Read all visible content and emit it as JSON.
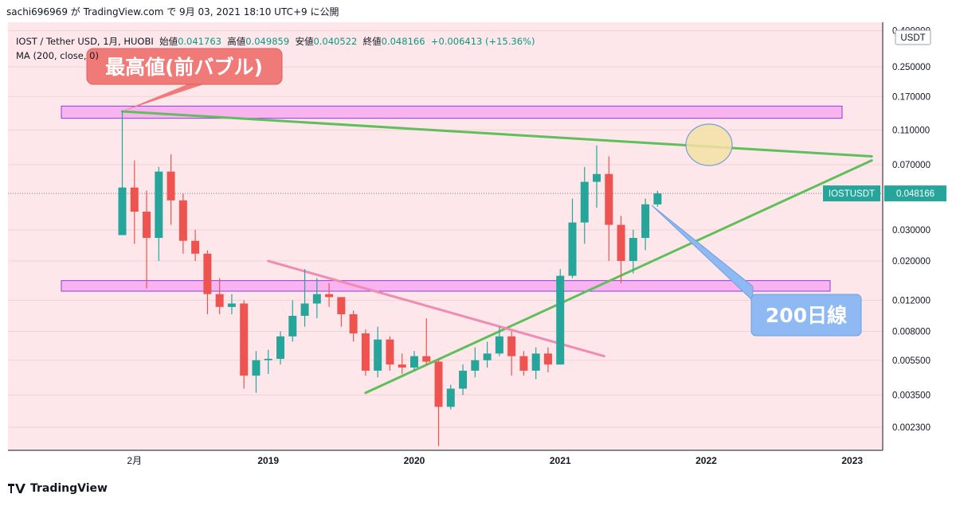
{
  "header": {
    "text": "sachi696969 が TradingView.com で 9月 03, 2021 18:10 UTC+9 に公開"
  },
  "legend": {
    "symbol": "IOST / Tether USD, 1月, HUOBI",
    "open_label": "始値",
    "open": "0.041763",
    "high_label": "高値",
    "high": "0.049859",
    "low_label": "安値",
    "low": "0.040522",
    "close_label": "終値",
    "close": "0.048166",
    "change": "+0.006413 (+15.36%)",
    "ma": "MA (200, close, 0)"
  },
  "price_axis": {
    "unit": "USDT",
    "ticks": [
      "0.400000",
      "0.250000",
      "0.170000",
      "0.110000",
      "0.070000",
      "0.048166",
      "0.030000",
      "0.020000",
      "0.012000",
      "0.008000",
      "0.005500",
      "0.003500",
      "0.002300"
    ],
    "last_symbol": "IOSTUSDT",
    "last_price": "0.048166"
  },
  "time_axis": {
    "ticks": [
      "2月",
      "2019",
      "2020",
      "2021",
      "2022",
      "2023"
    ]
  },
  "annotations": {
    "callout_top": "最高値(前バブル)",
    "callout_ma": "200日線"
  },
  "footer": {
    "brand": "TradingView"
  },
  "colors": {
    "up": "#26a69a",
    "down": "#ef5350",
    "background": "#fde7ea",
    "zone": "#f8b3f0",
    "trend_green": "#5fbf5c",
    "trend_pink": "#f28ab2",
    "callout_red": "#f07a78",
    "callout_blue": "#8fb9f2"
  },
  "chart_data": {
    "type": "candlestick",
    "title": "IOST / Tether USD, 1月, HUOBI",
    "y_scale": "log",
    "ylim": [
      0.0017,
      0.4
    ],
    "candles": [
      {
        "month": "2018-01",
        "open": 0.028,
        "high": 0.14,
        "low": 0.028,
        "close": 0.052
      },
      {
        "month": "2018-02",
        "open": 0.052,
        "high": 0.074,
        "low": 0.025,
        "close": 0.038
      },
      {
        "month": "2018-03",
        "open": 0.038,
        "high": 0.05,
        "low": 0.014,
        "close": 0.027
      },
      {
        "month": "2018-04",
        "open": 0.027,
        "high": 0.068,
        "low": 0.02,
        "close": 0.064
      },
      {
        "month": "2018-05",
        "open": 0.064,
        "high": 0.08,
        "low": 0.032,
        "close": 0.044
      },
      {
        "month": "2018-06",
        "open": 0.044,
        "high": 0.048,
        "low": 0.022,
        "close": 0.026
      },
      {
        "month": "2018-07",
        "open": 0.026,
        "high": 0.03,
        "low": 0.02,
        "close": 0.022
      },
      {
        "month": "2018-08",
        "open": 0.022,
        "high": 0.023,
        "low": 0.01,
        "close": 0.013
      },
      {
        "month": "2018-09",
        "open": 0.013,
        "high": 0.016,
        "low": 0.01,
        "close": 0.011
      },
      {
        "month": "2018-10",
        "open": 0.011,
        "high": 0.013,
        "low": 0.01,
        "close": 0.0115
      },
      {
        "month": "2018-11",
        "open": 0.0115,
        "high": 0.012,
        "low": 0.0038,
        "close": 0.0045
      },
      {
        "month": "2018-12",
        "open": 0.0045,
        "high": 0.0062,
        "low": 0.0036,
        "close": 0.0055
      },
      {
        "month": "2019-01",
        "open": 0.0055,
        "high": 0.0063,
        "low": 0.0046,
        "close": 0.0056
      },
      {
        "month": "2019-02",
        "open": 0.0056,
        "high": 0.008,
        "low": 0.0052,
        "close": 0.0075
      },
      {
        "month": "2019-03",
        "open": 0.0075,
        "high": 0.012,
        "low": 0.007,
        "close": 0.0098
      },
      {
        "month": "2019-04",
        "open": 0.0098,
        "high": 0.018,
        "low": 0.0085,
        "close": 0.0115
      },
      {
        "month": "2019-05",
        "open": 0.0115,
        "high": 0.016,
        "low": 0.0095,
        "close": 0.013
      },
      {
        "month": "2019-06",
        "open": 0.013,
        "high": 0.015,
        "low": 0.011,
        "close": 0.0125
      },
      {
        "month": "2019-07",
        "open": 0.0125,
        "high": 0.0125,
        "low": 0.0085,
        "close": 0.01
      },
      {
        "month": "2019-08",
        "open": 0.01,
        "high": 0.0105,
        "low": 0.007,
        "close": 0.0078
      },
      {
        "month": "2019-09",
        "open": 0.0078,
        "high": 0.0082,
        "low": 0.0045,
        "close": 0.0048
      },
      {
        "month": "2019-10",
        "open": 0.0048,
        "high": 0.0085,
        "low": 0.0044,
        "close": 0.0072
      },
      {
        "month": "2019-11",
        "open": 0.0072,
        "high": 0.0075,
        "low": 0.0048,
        "close": 0.0052
      },
      {
        "month": "2019-12",
        "open": 0.0052,
        "high": 0.006,
        "low": 0.0046,
        "close": 0.005
      },
      {
        "month": "2020-01",
        "open": 0.005,
        "high": 0.0062,
        "low": 0.0048,
        "close": 0.0058
      },
      {
        "month": "2020-02",
        "open": 0.0058,
        "high": 0.0095,
        "low": 0.0052,
        "close": 0.0054
      },
      {
        "month": "2020-03",
        "open": 0.0054,
        "high": 0.0056,
        "low": 0.0018,
        "close": 0.003
      },
      {
        "month": "2020-04",
        "open": 0.003,
        "high": 0.004,
        "low": 0.0029,
        "close": 0.0038
      },
      {
        "month": "2020-05",
        "open": 0.0038,
        "high": 0.0052,
        "low": 0.0035,
        "close": 0.0048
      },
      {
        "month": "2020-06",
        "open": 0.0048,
        "high": 0.0065,
        "low": 0.0044,
        "close": 0.0055
      },
      {
        "month": "2020-07",
        "open": 0.0055,
        "high": 0.007,
        "low": 0.005,
        "close": 0.006
      },
      {
        "month": "2020-08",
        "open": 0.006,
        "high": 0.0085,
        "low": 0.0058,
        "close": 0.0075
      },
      {
        "month": "2020-09",
        "open": 0.0075,
        "high": 0.008,
        "low": 0.0045,
        "close": 0.0058
      },
      {
        "month": "2020-10",
        "open": 0.0058,
        "high": 0.0062,
        "low": 0.0045,
        "close": 0.0048
      },
      {
        "month": "2020-11",
        "open": 0.0048,
        "high": 0.0065,
        "low": 0.0043,
        "close": 0.006
      },
      {
        "month": "2020-12",
        "open": 0.006,
        "high": 0.0065,
        "low": 0.0047,
        "close": 0.0052
      },
      {
        "month": "2021-01",
        "open": 0.0052,
        "high": 0.018,
        "low": 0.0052,
        "close": 0.0165
      },
      {
        "month": "2021-02",
        "open": 0.0165,
        "high": 0.045,
        "low": 0.016,
        "close": 0.033
      },
      {
        "month": "2021-03",
        "open": 0.033,
        "high": 0.068,
        "low": 0.025,
        "close": 0.056
      },
      {
        "month": "2021-04",
        "open": 0.056,
        "high": 0.09,
        "low": 0.04,
        "close": 0.062
      },
      {
        "month": "2021-05",
        "open": 0.062,
        "high": 0.078,
        "low": 0.02,
        "close": 0.032
      },
      {
        "month": "2021-06",
        "open": 0.032,
        "high": 0.036,
        "low": 0.015,
        "close": 0.02
      },
      {
        "month": "2021-07",
        "open": 0.02,
        "high": 0.03,
        "low": 0.017,
        "close": 0.027
      },
      {
        "month": "2021-08",
        "open": 0.027,
        "high": 0.045,
        "low": 0.023,
        "close": 0.0418
      },
      {
        "month": "2021-09",
        "open": 0.041763,
        "high": 0.049859,
        "low": 0.040522,
        "close": 0.048166
      }
    ],
    "zones": [
      {
        "low": 0.128,
        "high": 0.15
      },
      {
        "low": 0.0135,
        "high": 0.0155
      }
    ],
    "trendlines": [
      {
        "color": "green",
        "from": {
          "month": "2018-01",
          "price": 0.14
        },
        "to": {
          "month": "2023-03",
          "price": 0.078
        }
      },
      {
        "color": "green",
        "from": {
          "month": "2019-09",
          "price": 0.0036
        },
        "to": {
          "month": "2023-03",
          "price": 0.074
        }
      },
      {
        "color": "pink",
        "from": {
          "month": "2019-01",
          "price": 0.02
        },
        "to": {
          "month": "2021-05",
          "price": 0.0058
        }
      }
    ]
  }
}
